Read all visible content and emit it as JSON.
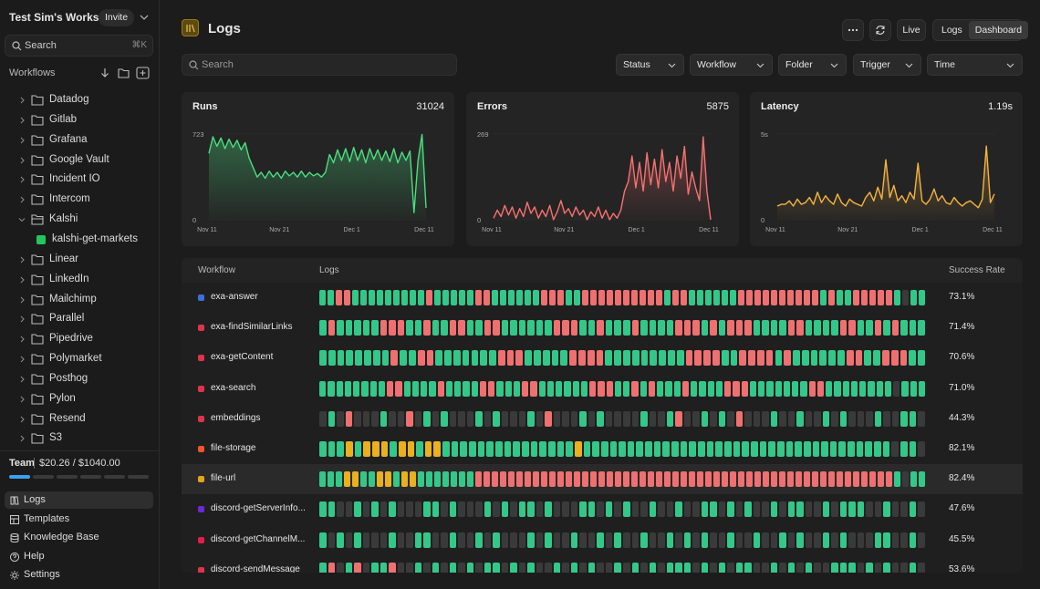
{
  "sidebar": {
    "workspace": "Test Sim's Works...",
    "invite": "Invite",
    "search": "Search",
    "shortcut": "⌘K",
    "section": "Workflows",
    "folders": [
      {
        "name": "Datadog"
      },
      {
        "name": "Gitlab"
      },
      {
        "name": "Grafana"
      },
      {
        "name": "Google Vault"
      },
      {
        "name": "Incident IO"
      },
      {
        "name": "Intercom"
      },
      {
        "name": "Kalshi",
        "children": [
          "kalshi-get-markets"
        ]
      },
      {
        "name": "Linear"
      },
      {
        "name": "LinkedIn"
      },
      {
        "name": "Mailchimp"
      },
      {
        "name": "Parallel"
      },
      {
        "name": "Pipedrive"
      },
      {
        "name": "Polymarket"
      },
      {
        "name": "Posthog"
      },
      {
        "name": "Pylon"
      },
      {
        "name": "Resend"
      },
      {
        "name": "S3"
      }
    ],
    "usage": {
      "plan": "Team",
      "amount": "$20.26 / $1040.00"
    },
    "nav": [
      "Logs",
      "Templates",
      "Knowledge Base",
      "Help",
      "Settings"
    ]
  },
  "header": {
    "title": "Logs",
    "live": "Live",
    "views": [
      "Logs",
      "Dashboard"
    ],
    "selected_view": "Dashboard"
  },
  "search": "Search",
  "filters": [
    "Status",
    "Workflow",
    "Folder",
    "Trigger",
    "Time"
  ],
  "charts": [
    {
      "type": "line",
      "title": "Runs",
      "total": "31024",
      "color": "#4ade80",
      "xlabels": [
        "Nov 11",
        "Nov 21",
        "Dec 1",
        "Dec 11"
      ],
      "ylim": [
        0,
        723
      ],
      "yticks": [
        0,
        723
      ],
      "values": [
        560,
        700,
        620,
        690,
        600,
        680,
        610,
        670,
        590,
        650,
        520,
        440,
        360,
        400,
        350,
        410,
        360,
        400,
        350,
        410,
        370,
        400,
        360,
        410,
        360,
        400,
        370,
        390,
        360,
        400,
        550,
        480,
        590,
        500,
        600,
        490,
        610,
        500,
        590,
        480,
        600,
        510,
        590,
        500,
        580,
        490,
        600,
        480,
        570,
        500,
        580,
        60,
        500,
        720,
        100
      ]
    },
    {
      "type": "line",
      "title": "Errors",
      "total": "5875",
      "color": "#f87171",
      "xlabels": [
        "Nov 11",
        "Nov 21",
        "Dec 1",
        "Dec 11"
      ],
      "ylim": [
        0,
        269
      ],
      "yticks": [
        0,
        269
      ],
      "values": [
        5,
        30,
        10,
        45,
        15,
        40,
        5,
        35,
        10,
        55,
        20,
        40,
        5,
        30,
        10,
        45,
        0,
        25,
        60,
        20,
        35,
        10,
        40,
        15,
        30,
        0,
        25,
        10,
        40,
        5,
        30,
        0,
        20,
        5,
        30,
        90,
        120,
        200,
        100,
        180,
        90,
        210,
        110,
        190,
        100,
        220,
        120,
        180,
        90,
        200,
        130,
        230,
        80,
        150,
        100,
        60,
        260,
        90,
        0
      ]
    },
    {
      "type": "line",
      "title": "Latency",
      "total": "1.19s",
      "color": "#f5b342",
      "xlabels": [
        "Nov 11",
        "Nov 21",
        "Dec 1",
        "Dec 11"
      ],
      "ylim": [
        0,
        5
      ],
      "yticks": [
        0,
        {
          "value": 5,
          "label": "5s"
        }
      ],
      "values": [
        0.8,
        0.9,
        0.9,
        1.1,
        0.8,
        1.2,
        0.9,
        1.0,
        1.3,
        0.9,
        1.6,
        1.0,
        1.4,
        1.1,
        0.9,
        1.5,
        1.0,
        0.8,
        1.2,
        1.0,
        0.9,
        0.8,
        1.3,
        1.6,
        1.1,
        1.9,
        1.2,
        3.5,
        1.3,
        2.0,
        1.1,
        1.4,
        1.0,
        1.6,
        1.2,
        3.3,
        1.1,
        0.9,
        1.2,
        1.8,
        1.1,
        1.4,
        1.0,
        0.9,
        1.3,
        1.0,
        0.8,
        1.0,
        1.1,
        0.9,
        0.7,
        1.2,
        4.3,
        1.0,
        1.5
      ]
    }
  ],
  "table": {
    "columns": [
      "Workflow",
      "Logs",
      "Success Rate"
    ],
    "selected_row": 6,
    "status_colors": {
      "s": "#34c78a",
      "e": "#ef7070",
      "p": "#e9b020",
      "n": "#3a3a3a"
    },
    "rows": [
      {
        "name": "exa-answer",
        "color": "#3b6fe0",
        "logs": "sseesssssssssessssseesssssseeesseeeeeeeeeeseesssssseeeeeeeeeesesseeeeesnss",
        "rate": "73.1%"
      },
      {
        "name": "exa-findSimilarLinks",
        "color": "#e0334a",
        "logs": "sessssseeessesseesseesssssseeessesssesssseeeseseeesssseesssseessesesss",
        "rate": "71.4%"
      },
      {
        "name": "exa-getContent",
        "color": "#e0334a",
        "logs": "ssssssssesseessssssseeessssseeeessssssssseeeesseeeesesssssseesseeess",
        "rate": "70.6%"
      },
      {
        "name": "exa-search",
        "color": "#e0334a",
        "logs": "sssssssseessssesssseessseesssssseeessesesssesssseeessssssseessssssssnsss",
        "rate": "71.0%"
      },
      {
        "name": "embeddings",
        "color": "#e0334a",
        "logs": "nsnennnsnnensnsnnnsnsnnnsnennnsnsnnnnsnnsennsnsnennnsnnsnnsnsnnnsnnssn",
        "rate": "44.3%"
      },
      {
        "name": "file-storage",
        "color": "#f0542a",
        "logs": "ssspspppsppsppssssssssssssssspsssssssssssssssssssssssssssssssssssnssn",
        "rate": "82.1%"
      },
      {
        "name": "file-url",
        "color": "#e0a51a",
        "logs": "sssppsspp sppssssssseeeeeeeeeeeeeeeeeeeeeeeeeeeeeeeeeeeeeeeeeeeeeeeeeeesnss",
        "rate": "82.4%"
      },
      {
        "name": "discord-getServerInfo...",
        "color": "#6d28d9",
        "logs": "ssnnsnsnsnnnssnsnnnsnsnssnsnnnssnsnsnnsnnsnnssnsnsnnsnssnnsnsssnnsnnsn",
        "rate": "47.6%"
      },
      {
        "name": "discord-getChannelM...",
        "color": "#e11d48",
        "logs": "snsnsnnnsnnssnnsnnsnsnnnsnsnnsnnsnsnnsnnsnsnsnnsnnsnnsnsnnsnsnnnssnnsn",
        "rate": "45.5%"
      },
      {
        "name": "discord-sendMessage",
        "color": "#e0334a",
        "logs": "sensenssennsnsnsnsnssnsnsnnsnsnsnnsnsnsnsssnsnsnssnnsnsnsnnsssnsnsnnsn",
        "rate": "53.6%"
      }
    ]
  }
}
